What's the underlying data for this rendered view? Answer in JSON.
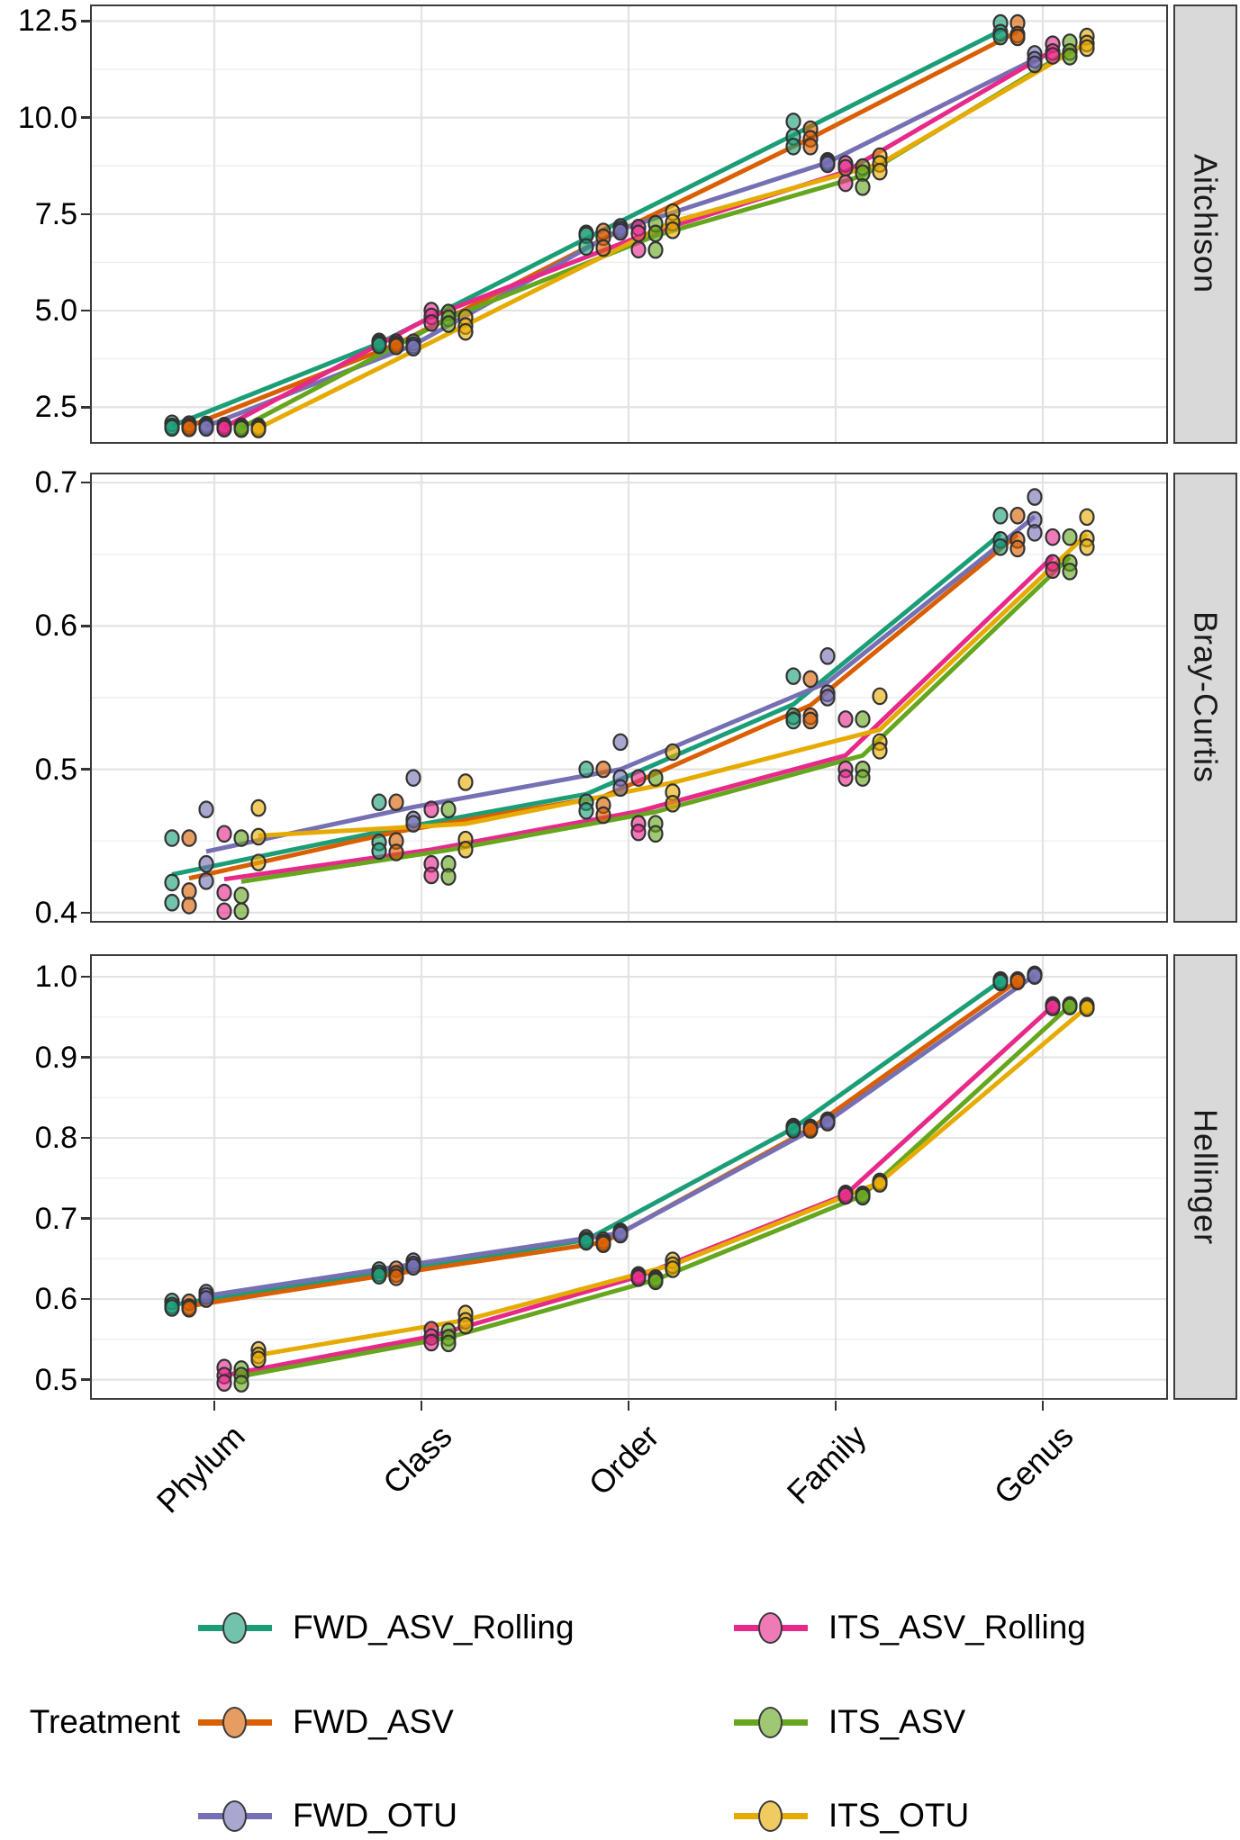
{
  "figure": {
    "background": "#ffffff",
    "panel_border_color": "#3c3c3c",
    "major_grid_color": "#e3e3e3",
    "minor_grid_color": "#efefef",
    "strip_background": "#d9d9d9",
    "point_fill_opacity": 0.62,
    "point_outline_color": "#333333"
  },
  "legend": {
    "title": "Treatment"
  },
  "chart_data": {
    "type": "line",
    "grid": "on",
    "legend_position": "bottom",
    "categories": [
      "Phylum",
      "Class",
      "Order",
      "Family",
      "Genus"
    ],
    "treatments": [
      {
        "name": "FWD_ASV_Rolling",
        "color": "#1B9E77"
      },
      {
        "name": "FWD_ASV",
        "color": "#D95F02"
      },
      {
        "name": "FWD_OTU",
        "color": "#7570B3"
      },
      {
        "name": "ITS_ASV_Rolling",
        "color": "#E7298A"
      },
      {
        "name": "ITS_ASV",
        "color": "#66A61E"
      },
      {
        "name": "ITS_OTU",
        "color": "#E6AB02"
      }
    ],
    "facets": [
      {
        "label": "Aitchison",
        "ylim": [
          1.55,
          12.93
        ],
        "yticks": [
          2.5,
          5.0,
          7.5,
          10.0,
          12.5
        ],
        "ytick_labels": [
          "2.5",
          "5.0",
          "7.5",
          "10.0",
          "12.5"
        ],
        "yminor": [
          3.75,
          6.25,
          8.75,
          11.25
        ],
        "series": [
          {
            "treatment": "FWD_ASV_Rolling",
            "points": [
              [
                2.08,
                2.0,
                1.96
              ],
              [
                4.2,
                4.15,
                4.1
              ],
              [
                7.0,
                6.95,
                6.65
              ],
              [
                9.9,
                9.5,
                9.25
              ],
              [
                12.45,
                12.2,
                12.1
              ]
            ]
          },
          {
            "treatment": "FWD_ASV",
            "points": [
              [
                2.06,
                2.0,
                1.95
              ],
              [
                4.18,
                4.12,
                4.07
              ],
              [
                7.05,
                6.9,
                6.62
              ],
              [
                9.7,
                9.45,
                9.25
              ],
              [
                12.45,
                12.15,
                12.08
              ]
            ]
          },
          {
            "treatment": "FWD_OTU",
            "points": [
              [
                2.05,
                2.0,
                1.96
              ],
              [
                4.18,
                4.1,
                4.04
              ],
              [
                7.17,
                7.1,
                7.04
              ],
              [
                8.88,
                8.84,
                8.79
              ],
              [
                11.65,
                11.5,
                11.38
              ]
            ]
          },
          {
            "treatment": "ITS_ASV_Rolling",
            "points": [
              [
                2.02,
                1.98,
                1.94
              ],
              [
                5.0,
                4.85,
                4.68
              ],
              [
                7.15,
                7.0,
                6.58
              ],
              [
                8.8,
                8.7,
                8.3
              ],
              [
                11.9,
                11.7,
                11.6
              ]
            ]
          },
          {
            "treatment": "ITS_ASV",
            "points": [
              [
                2.0,
                1.97,
                1.93
              ],
              [
                4.95,
                4.8,
                4.65
              ],
              [
                7.25,
                7.0,
                6.57
              ],
              [
                8.72,
                8.56,
                8.2
              ],
              [
                11.95,
                11.7,
                11.58
              ]
            ]
          },
          {
            "treatment": "ITS_OTU",
            "points": [
              [
                2.0,
                1.95,
                1.92
              ],
              [
                4.82,
                4.6,
                4.45
              ],
              [
                7.55,
                7.28,
                7.08
              ],
              [
                9.0,
                8.8,
                8.6
              ],
              [
                12.1,
                11.92,
                11.8
              ]
            ]
          }
        ]
      },
      {
        "label": "Bray-Curtis",
        "ylim": [
          0.393,
          0.707
        ],
        "yticks": [
          0.4,
          0.5,
          0.6,
          0.7
        ],
        "ytick_labels": [
          "0.4",
          "0.5",
          "0.6",
          "0.7"
        ],
        "yminor": [
          0.45,
          0.55,
          0.65
        ],
        "series": [
          {
            "treatment": "FWD_ASV_Rolling",
            "points": [
              [
                0.452,
                0.421,
                0.407
              ],
              [
                0.477,
                0.449,
                0.443
              ],
              [
                0.5,
                0.477,
                0.471
              ],
              [
                0.565,
                0.537,
                0.534
              ],
              [
                0.677,
                0.66,
                0.655
              ]
            ]
          },
          {
            "treatment": "FWD_ASV",
            "points": [
              [
                0.452,
                0.415,
                0.405
              ],
              [
                0.477,
                0.45,
                0.442
              ],
              [
                0.5,
                0.475,
                0.468
              ],
              [
                0.563,
                0.537,
                0.534
              ],
              [
                0.677,
                0.66,
                0.654
              ]
            ]
          },
          {
            "treatment": "FWD_OTU",
            "points": [
              [
                0.472,
                0.434,
                0.422
              ],
              [
                0.494,
                0.465,
                0.462
              ],
              [
                0.519,
                0.494,
                0.487
              ],
              [
                0.579,
                0.553,
                0.55
              ],
              [
                0.69,
                0.674,
                0.665
              ]
            ]
          },
          {
            "treatment": "ITS_ASV_Rolling",
            "points": [
              [
                0.455,
                0.414,
                0.401
              ],
              [
                0.472,
                0.434,
                0.426
              ],
              [
                0.494,
                0.462,
                0.456
              ],
              [
                0.535,
                0.5,
                0.494
              ],
              [
                0.662,
                0.644,
                0.639
              ]
            ]
          },
          {
            "treatment": "ITS_ASV",
            "points": [
              [
                0.452,
                0.412,
                0.401
              ],
              [
                0.472,
                0.434,
                0.425
              ],
              [
                0.494,
                0.462,
                0.455
              ],
              [
                0.535,
                0.5,
                0.494
              ],
              [
                0.662,
                0.644,
                0.638
              ]
            ]
          },
          {
            "treatment": "ITS_OTU",
            "points": [
              [
                0.473,
                0.453,
                0.435
              ],
              [
                0.491,
                0.451,
                0.444
              ],
              [
                0.512,
                0.484,
                0.476
              ],
              [
                0.551,
                0.519,
                0.513
              ],
              [
                0.676,
                0.661,
                0.655
              ]
            ]
          }
        ]
      },
      {
        "label": "Hellinger",
        "ylim": [
          0.475,
          1.028
        ],
        "yticks": [
          0.5,
          0.6,
          0.7,
          0.8,
          0.9,
          1.0
        ],
        "ytick_labels": [
          "0.5",
          "0.6",
          "0.7",
          "0.8",
          "0.9",
          "1.0"
        ],
        "yminor": [
          0.55,
          0.65,
          0.75,
          0.85,
          0.95
        ],
        "series": [
          {
            "treatment": "FWD_ASV_Rolling",
            "points": [
              [
                0.597,
                0.592,
                0.589
              ],
              [
                0.636,
                0.632,
                0.629
              ],
              [
                0.676,
                0.673,
                0.671
              ],
              [
                0.814,
                0.812,
                0.81
              ],
              [
                0.996,
                0.995,
                0.993
              ]
            ]
          },
          {
            "treatment": "FWD_ASV",
            "points": [
              [
                0.596,
                0.59,
                0.588
              ],
              [
                0.637,
                0.631,
                0.627
              ],
              [
                0.673,
                0.67,
                0.668
              ],
              [
                0.813,
                0.812,
                0.81
              ],
              [
                0.996,
                0.995,
                0.994
              ]
            ]
          },
          {
            "treatment": "FWD_OTU",
            "points": [
              [
                0.608,
                0.604,
                0.6
              ],
              [
                0.647,
                0.643,
                0.64
              ],
              [
                0.684,
                0.682,
                0.68
              ],
              [
                0.822,
                0.821,
                0.819
              ],
              [
                1.003,
                1.002,
                1.001
              ]
            ]
          },
          {
            "treatment": "ITS_ASV_Rolling",
            "points": [
              [
                0.515,
                0.505,
                0.496
              ],
              [
                0.562,
                0.553,
                0.546
              ],
              [
                0.63,
                0.628,
                0.626
              ],
              [
                0.731,
                0.73,
                0.728
              ],
              [
                0.965,
                0.964,
                0.962
              ]
            ]
          },
          {
            "treatment": "ITS_ASV",
            "points": [
              [
                0.513,
                0.505,
                0.495
              ],
              [
                0.56,
                0.552,
                0.545
              ],
              [
                0.626,
                0.624,
                0.622
              ],
              [
                0.73,
                0.729,
                0.727
              ],
              [
                0.965,
                0.964,
                0.963
              ]
            ]
          },
          {
            "treatment": "ITS_OTU",
            "points": [
              [
                0.537,
                0.53,
                0.525
              ],
              [
                0.582,
                0.573,
                0.567
              ],
              [
                0.648,
                0.642,
                0.637
              ],
              [
                0.746,
                0.745,
                0.743
              ],
              [
                0.964,
                0.962,
                0.961
              ]
            ]
          }
        ]
      }
    ]
  }
}
